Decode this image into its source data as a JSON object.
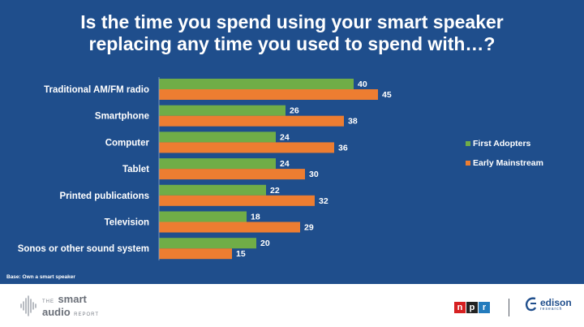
{
  "title_line1": "Is the time you spend using your smart speaker",
  "title_line2": "replacing any time you used to spend with…?",
  "base_note": "Base: Own a smart speaker",
  "colors": {
    "background": "#1f4e8c",
    "first_adopters": "#70ad47",
    "early_mainstream": "#ed7d31",
    "text": "#ffffff"
  },
  "chart_data": {
    "type": "bar",
    "orientation": "horizontal",
    "categories": [
      "Traditional AM/FM radio",
      "Smartphone",
      "Computer",
      "Tablet",
      "Printed publications",
      "Television",
      "Sonos or other sound system"
    ],
    "series": [
      {
        "name": "First Adopters",
        "color": "#70ad47",
        "values": [
          40,
          26,
          24,
          24,
          22,
          18,
          20
        ]
      },
      {
        "name": "Early Mainstream",
        "color": "#ed7d31",
        "values": [
          45,
          38,
          36,
          30,
          32,
          29,
          15
        ]
      }
    ],
    "xlim": [
      0,
      50
    ],
    "legend_position": "right",
    "grid": false
  },
  "footer": {
    "report_the": "THE",
    "report_smart": "smart",
    "report_audio": "audio",
    "report_word": "REPORT",
    "npr_letters": [
      "n",
      "p",
      "r"
    ],
    "npr_colors": [
      "#d62021",
      "#222222",
      "#237bbd"
    ],
    "edison_name": "edison",
    "edison_sub": "research"
  }
}
